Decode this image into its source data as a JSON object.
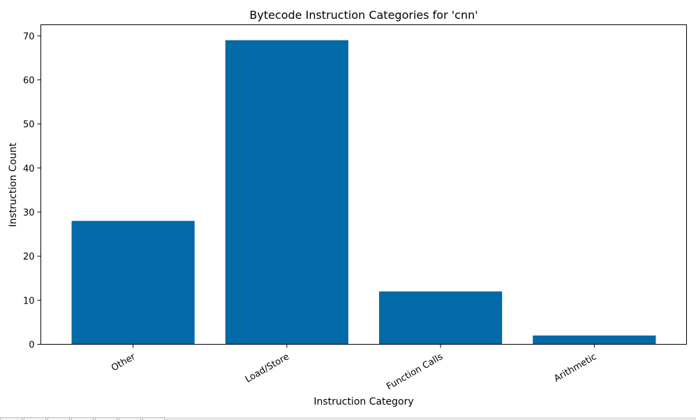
{
  "chart_data": {
    "type": "bar",
    "title": "Bytecode Instruction Categories for 'cnn'",
    "xlabel": "Instruction Category",
    "ylabel": "Instruction Count",
    "categories": [
      "Other",
      "Load/Store",
      "Function Calls",
      "Arithmetic"
    ],
    "values": [
      28,
      69,
      12,
      2
    ],
    "ylim": [
      0,
      72.5
    ],
    "yticks": [
      0,
      10,
      20,
      30,
      40,
      50,
      60,
      70
    ],
    "bar_color": "#026aa7",
    "grid": false,
    "x_tick_rotation": 30
  }
}
